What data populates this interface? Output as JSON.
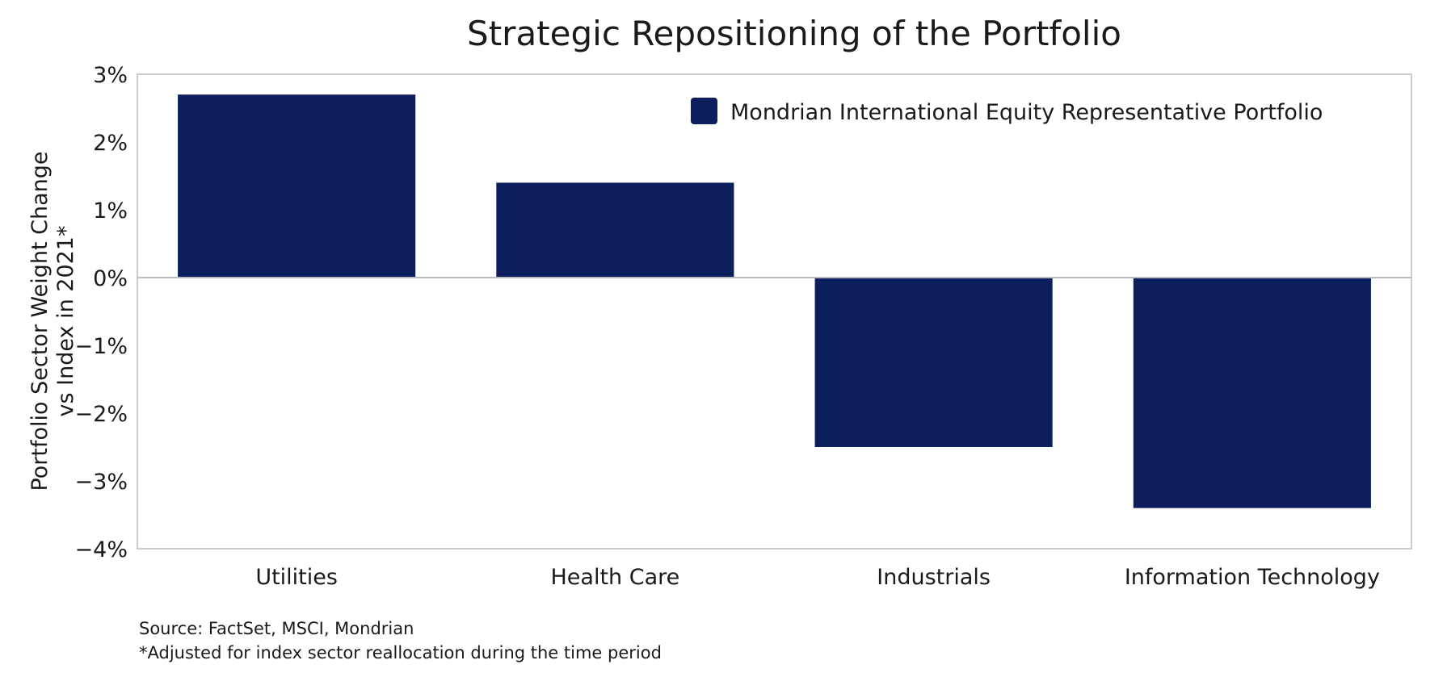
{
  "chart_data": {
    "type": "bar",
    "title": "Strategic Repositioning of the Portfolio",
    "ylabel_lines": [
      "Portfolio Sector Weight Change",
      "vs Index in 2021*"
    ],
    "categories": [
      "Utilities",
      "Health Care",
      "Industrials",
      "Information Technology"
    ],
    "series": [
      {
        "name": "Mondrian International Equity Representative Portfolio",
        "values": [
          2.7,
          1.4,
          -2.5,
          -3.4
        ],
        "color": "#0c1f5c"
      }
    ],
    "ylim": [
      -4,
      3
    ],
    "yticks": [
      3,
      2,
      1,
      0,
      -1,
      -2,
      -3,
      -4
    ],
    "ytick_labels": [
      "3%",
      "2%",
      "1%",
      "0%",
      "−1%",
      "−2%",
      "−3%",
      "−4%"
    ],
    "grid": false,
    "legend_position": "top-right",
    "frame_color": "#c9cdd3",
    "zero_line_color": "#b8bcc4"
  },
  "notes": {
    "source": "Source: FactSet, MSCI, Mondrian",
    "footnote": "*Adjusted for index sector reallocation during the time period"
  }
}
